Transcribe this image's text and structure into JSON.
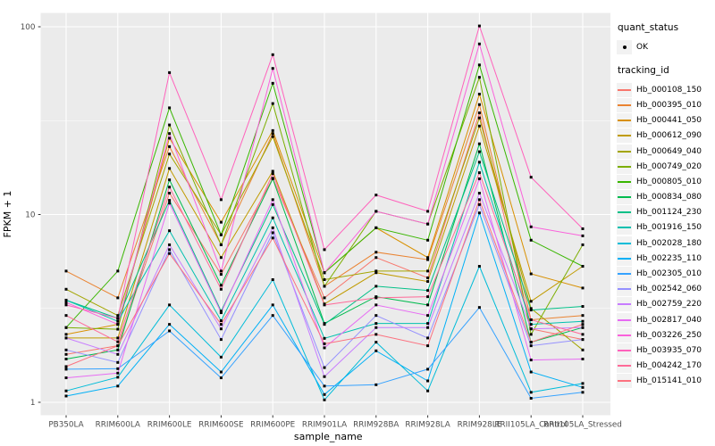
{
  "colors": {
    "panel_background": "#EBEBEB",
    "gridline": "#FFFFFF",
    "axis_text": "#4D4D4D",
    "tick_mark": "#333333",
    "point": "#000000",
    "legend_key_background": "#F2F2F2"
  },
  "chart_data": {
    "type": "line",
    "title": "",
    "xlabel": "sample_name",
    "ylabel": "FPKM + 1",
    "y_scale": "log10",
    "y_ticks": [
      "1",
      "10",
      "100"
    ],
    "y_tick_values": [
      1,
      10,
      100
    ],
    "ylim": [
      1,
      118
    ],
    "grid": "on",
    "legend_position": "right",
    "x_categories": [
      "PB350LA",
      "RRIM600LA",
      "RRIM600LE",
      "RRIM600SE",
      "RRIM600PE",
      "RRIM901LA",
      "RRIM928BA",
      "RRIM928LA",
      "RRIM928LE",
      "RRII105LA_Control",
      "RRII105LA_Stressed"
    ],
    "legend": {
      "quant_status_title": "quant_status",
      "quant_status_items": [
        {
          "label": "OK",
          "marker": "black-point-icon"
        }
      ],
      "tracking_id_title": "tracking_id"
    },
    "series": [
      {
        "name": "Hb_000108_150",
        "color": "#F8766D",
        "values": [
          1.8,
          2.0,
          13.0,
          4.8,
          15.6,
          3.6,
          5.9,
          4.6,
          34.8,
          2.46,
          2.16
        ]
      },
      {
        "name": "Hb_000395_010",
        "color": "#EA8331",
        "values": [
          5.0,
          3.6,
          23.0,
          6.9,
          27.0,
          4.15,
          6.3,
          5.75,
          38.5,
          2.75,
          2.9
        ]
      },
      {
        "name": "Hb_000441_050",
        "color": "#D89000",
        "values": [
          2.3,
          2.6,
          25.5,
          9.1,
          28.0,
          4.9,
          8.5,
          5.9,
          43.8,
          4.83,
          4.06
        ]
      },
      {
        "name": "Hb_000612_090",
        "color": "#C09B00",
        "values": [
          2.2,
          2.2,
          17.6,
          5.9,
          17.0,
          3.34,
          4.9,
          4.4,
          29.6,
          3.45,
          5.3
        ]
      },
      {
        "name": "Hb_000649_040",
        "color": "#A3A500",
        "values": [
          4.0,
          2.9,
          21.0,
          7.8,
          26.0,
          4.5,
          5.0,
          5.0,
          32.7,
          3.16,
          1.9
        ]
      },
      {
        "name": "Hb_000749_020",
        "color": "#7CAE00",
        "values": [
          2.5,
          2.45,
          30.0,
          6.9,
          39.0,
          4.15,
          10.4,
          8.9,
          53.8,
          2.3,
          6.9
        ]
      },
      {
        "name": "Hb_000805_010",
        "color": "#39B600",
        "values": [
          2.5,
          5.0,
          37.0,
          7.8,
          50.0,
          4.9,
          8.5,
          7.3,
          62.6,
          7.3,
          5.3
        ]
      },
      {
        "name": "Hb_000834_080",
        "color": "#00BB4E",
        "values": [
          1.7,
          1.9,
          15.3,
          4.2,
          15.5,
          2.63,
          3.65,
          3.3,
          23.8,
          2.09,
          2.5
        ]
      },
      {
        "name": "Hb_001124_230",
        "color": "#00C087",
        "values": [
          3.5,
          2.8,
          11.9,
          3.06,
          11.3,
          2.6,
          4.15,
          3.94,
          21.6,
          3.1,
          3.24
        ]
      },
      {
        "name": "Hb_001916_150",
        "color": "#00C0AF",
        "values": [
          3.5,
          2.7,
          8.2,
          2.72,
          9.6,
          2.19,
          2.63,
          2.63,
          19.0,
          2.6,
          2.7
        ]
      },
      {
        "name": "Hb_002028_180",
        "color": "#00BCD8",
        "values": [
          1.15,
          1.36,
          3.3,
          1.74,
          4.5,
          1.03,
          2.09,
          1.15,
          5.3,
          1.13,
          1.26
        ]
      },
      {
        "name": "Hb_002235_110",
        "color": "#00B0F6",
        "values": [
          1.08,
          1.22,
          2.6,
          1.45,
          3.3,
          1.1,
          1.88,
          1.3,
          10.2,
          1.45,
          1.2
        ]
      },
      {
        "name": "Hb_002305_010",
        "color": "#35A2FF",
        "values": [
          1.5,
          1.51,
          2.4,
          1.35,
          2.9,
          1.22,
          1.24,
          1.5,
          3.2,
          1.05,
          1.13
        ]
      },
      {
        "name": "Hb_002542_060",
        "color": "#9590FF",
        "values": [
          1.9,
          1.63,
          6.5,
          2.16,
          8.0,
          1.53,
          2.9,
          2.2,
          11.3,
          2.0,
          2.16
        ]
      },
      {
        "name": "Hb_002759_220",
        "color": "#C77CFF",
        "values": [
          2.2,
          1.8,
          6.9,
          2.46,
          8.5,
          1.37,
          2.5,
          2.5,
          13.0,
          2.46,
          2.5
        ]
      },
      {
        "name": "Hb_002817_040",
        "color": "#E76BF3",
        "values": [
          1.35,
          1.43,
          11.5,
          3.0,
          12.0,
          1.95,
          3.3,
          2.9,
          15.5,
          1.68,
          1.7
        ]
      },
      {
        "name": "Hb_003226_250",
        "color": "#FA62DB",
        "values": [
          3.4,
          2.6,
          27.0,
          5.0,
          60.0,
          4.9,
          10.4,
          8.9,
          81.0,
          8.6,
          7.7
        ]
      },
      {
        "name": "Hb_003935_070",
        "color": "#FF62BC",
        "values": [
          3.3,
          2.8,
          57.0,
          12.0,
          71.0,
          6.5,
          12.7,
          10.4,
          101.0,
          15.8,
          8.4
        ]
      },
      {
        "name": "Hb_004242_170",
        "color": "#FF6A98",
        "values": [
          2.9,
          2.1,
          14.0,
          4.0,
          16.5,
          3.3,
          3.6,
          3.65,
          16.7,
          2.75,
          2.3
        ]
      },
      {
        "name": "Hb_015141_010",
        "color": "#FC717F",
        "values": [
          1.55,
          2.0,
          6.2,
          2.6,
          7.5,
          2.05,
          2.3,
          2.0,
          12.0,
          2.09,
          2.6
        ]
      }
    ]
  }
}
